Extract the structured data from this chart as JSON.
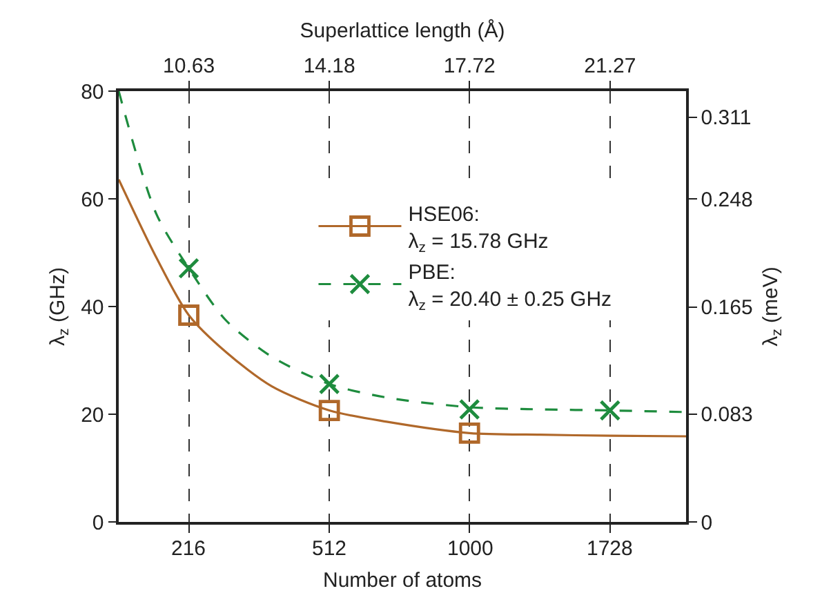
{
  "chart_data": {
    "type": "scatter",
    "xlabel": "Superlattice length (Å)",
    "xlim": [
      8.86,
      23.19
    ],
    "xticks": [
      10.63,
      14.18,
      17.72,
      21.27
    ],
    "annotations": [
      {
        "text": "216",
        "x": 10.63
      },
      {
        "text": "512",
        "x": 14.18
      },
      {
        "text": "1000",
        "x": 17.72
      },
      {
        "text": "1728",
        "x": 21.27
      },
      "Number of atoms"
    ],
    "ylabel": "λ$_{z}$ (GHz)",
    "y2label": "λ$_{z}$ (meV)",
    "ylim": [
      0,
      80
    ],
    "yticks": [
      0,
      20,
      40,
      60,
      80
    ],
    "y2lim": [
      0,
      0.331
    ],
    "y2ticks": [
      0,
      0.083,
      0.165,
      0.248,
      0.311
    ],
    "grid": "x",
    "legend": "top right",
    "series": [
      {
        "name": "HSE06:\nλ$_{z}$ = 15.78 GHz",
        "marker": "square",
        "line_style": "solid",
        "color": "#b0682a",
        "x": [
          10.63,
          14.18,
          17.72
        ],
        "values": [
          38.4,
          20.7,
          16.5
        ]
      },
      {
        "type": "line",
        "line_style": "solid",
        "color": "#b0682a",
        "x": [
          8.86,
          9.81,
          10.63,
          11.56,
          12.72,
          14.18,
          15.63,
          17.72,
          19.5,
          21.27,
          23.19
        ],
        "values": [
          63.6,
          49.1,
          38.4,
          31.6,
          25.2,
          20.7,
          18.6,
          16.5,
          16.2,
          16.0,
          15.9
        ]
      },
      {
        "name": "PBE:\nλ$_{z}$ = 20.40 ± 0.25 GHz",
        "marker": "cross",
        "line_style": "dashed",
        "color": "#1e8c3e",
        "x": [
          10.63,
          14.18,
          17.72,
          21.27
        ],
        "values": [
          47.1,
          25.6,
          20.9,
          20.7
        ]
      },
      {
        "type": "line",
        "line_style": "dashed",
        "color": "#1e8c3e",
        "x": [
          8.86,
          9.81,
          10.63,
          11.56,
          12.72,
          14.18,
          15.63,
          17.72,
          19.5,
          21.27,
          23.19
        ],
        "values": [
          80,
          57.2,
          47.1,
          37.5,
          30.7,
          25.6,
          23.1,
          21.3,
          20.9,
          20.7,
          20.4
        ]
      }
    ]
  }
}
